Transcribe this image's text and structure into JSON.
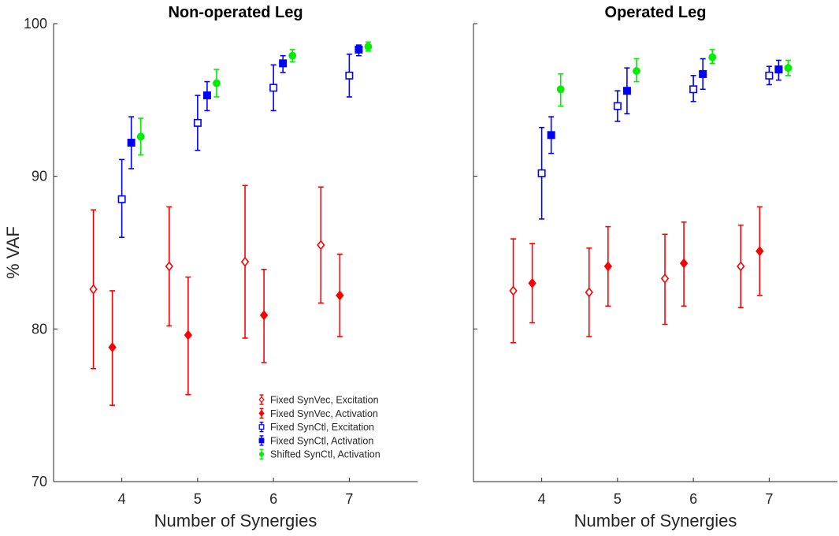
{
  "chart_data": [
    {
      "type": "scatter",
      "title": "Non-operated Leg",
      "xlabel": "Number of Synergies",
      "ylabel": "% VAF",
      "ylim": [
        70,
        100
      ],
      "yticks": [
        "70",
        "80",
        "90",
        "100"
      ],
      "xticks": [
        "4",
        "5",
        "6",
        "7"
      ],
      "categories": [
        4,
        5,
        6,
        7
      ],
      "legend_position": "bottom-right",
      "series": [
        {
          "name": "Fixed SynVec, Excitation",
          "color": "#ff0000",
          "marker": "diamond-open",
          "values": [
            82.6,
            84.1,
            84.4,
            85.5
          ],
          "lower": [
            77.4,
            80.2,
            79.4,
            81.7
          ],
          "upper": [
            87.8,
            88.0,
            89.4,
            89.3
          ]
        },
        {
          "name": "Fixed SynVec, Activation",
          "color": "#ff0000",
          "marker": "diamond-filled",
          "values": [
            78.8,
            79.6,
            80.9,
            82.2
          ],
          "lower": [
            75.0,
            75.7,
            77.8,
            79.5
          ],
          "upper": [
            82.5,
            83.4,
            83.9,
            84.9
          ]
        },
        {
          "name": "Fixed SynCtl, Excitation",
          "color": "#0000ff",
          "marker": "square-open",
          "values": [
            88.5,
            93.5,
            95.8,
            96.6
          ],
          "lower": [
            86.0,
            91.7,
            94.3,
            95.2
          ],
          "upper": [
            91.1,
            95.3,
            97.3,
            98.0
          ]
        },
        {
          "name": "Fixed SynCtl, Activation",
          "color": "#0000ff",
          "marker": "square-filled",
          "values": [
            92.2,
            95.3,
            97.4,
            98.3
          ],
          "lower": [
            90.5,
            94.3,
            96.8,
            97.9
          ],
          "upper": [
            93.9,
            96.2,
            97.9,
            98.6
          ]
        },
        {
          "name": "Shifted SynCtl, Activation",
          "color": "#00ee00",
          "marker": "circle-filled",
          "values": [
            92.6,
            96.1,
            97.9,
            98.5
          ],
          "lower": [
            91.4,
            95.2,
            97.5,
            98.2
          ],
          "upper": [
            93.8,
            97.0,
            98.3,
            98.8
          ]
        }
      ]
    },
    {
      "type": "scatter",
      "title": "Operated Leg",
      "xlabel": "Number of Synergies",
      "ylabel": "",
      "ylim": [
        70,
        100
      ],
      "yticks": [],
      "xticks": [
        "4",
        "5",
        "6",
        "7"
      ],
      "categories": [
        4,
        5,
        6,
        7
      ],
      "series": [
        {
          "name": "Fixed SynVec, Excitation",
          "color": "#ff0000",
          "marker": "diamond-open",
          "values": [
            82.5,
            82.4,
            83.3,
            84.1
          ],
          "lower": [
            79.1,
            79.5,
            80.3,
            81.4
          ],
          "upper": [
            85.9,
            85.3,
            86.2,
            86.8
          ]
        },
        {
          "name": "Fixed SynVec, Activation",
          "color": "#ff0000",
          "marker": "diamond-filled",
          "values": [
            83.0,
            84.1,
            84.3,
            85.1
          ],
          "lower": [
            80.4,
            81.5,
            81.5,
            82.2
          ],
          "upper": [
            85.6,
            86.7,
            87.0,
            88.0
          ]
        },
        {
          "name": "Fixed SynCtl, Excitation",
          "color": "#0000ff",
          "marker": "square-open",
          "values": [
            90.2,
            94.6,
            95.7,
            96.6
          ],
          "lower": [
            87.2,
            93.6,
            94.9,
            96.0
          ],
          "upper": [
            93.2,
            95.6,
            96.6,
            97.2
          ]
        },
        {
          "name": "Fixed SynCtl, Activation",
          "color": "#0000ff",
          "marker": "square-filled",
          "values": [
            92.7,
            95.6,
            96.7,
            97.0
          ],
          "lower": [
            91.5,
            94.1,
            95.7,
            96.3
          ],
          "upper": [
            93.9,
            97.1,
            97.7,
            97.6
          ]
        },
        {
          "name": "Shifted SynCtl, Activation",
          "color": "#00ee00",
          "marker": "circle-filled",
          "values": [
            95.7,
            96.9,
            97.8,
            97.1
          ],
          "lower": [
            94.6,
            96.2,
            97.4,
            96.6
          ],
          "upper": [
            96.7,
            97.7,
            98.3,
            97.6
          ]
        }
      ]
    }
  ]
}
